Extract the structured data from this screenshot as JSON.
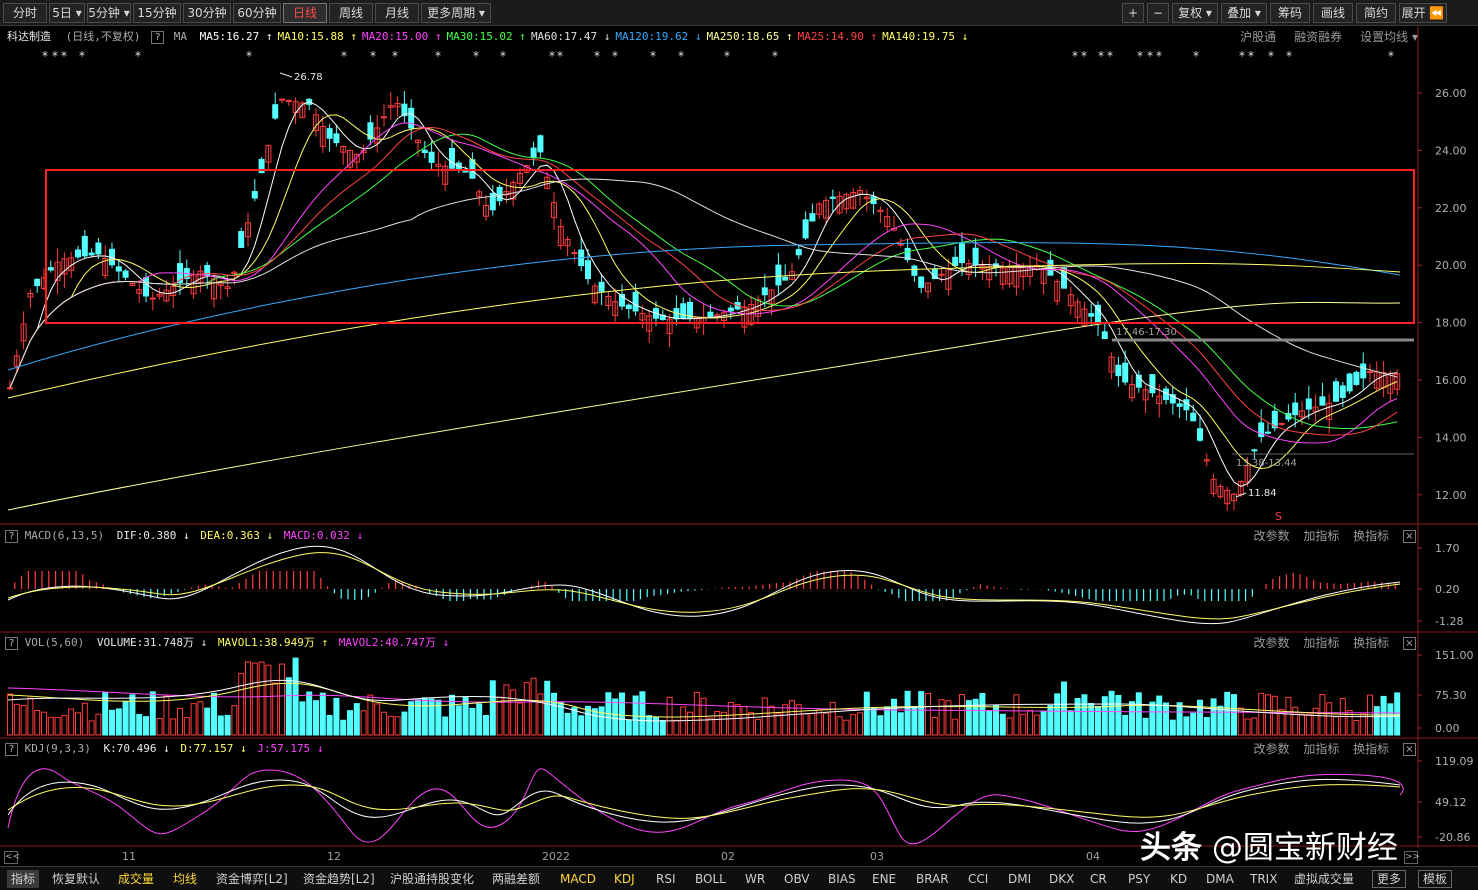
{
  "toolbar": {
    "periods": [
      "分时",
      "5日",
      "5分钟",
      "15分钟",
      "30分钟",
      "60分钟",
      "日线",
      "周线",
      "月线",
      "更多周期"
    ],
    "active_period": "日线",
    "right_buttons": [
      "+",
      "−",
      "复权",
      "叠加",
      "筹码",
      "画线",
      "简约",
      "展开"
    ]
  },
  "stock": {
    "name": "科达制造",
    "mode": "(日线,不复权)",
    "ma_label": "MA",
    "ma_items": [
      {
        "label": "MA5:16.27",
        "arrow": "↑",
        "color": "#ffffff"
      },
      {
        "label": "MA10:15.88",
        "arrow": "↑",
        "color": "#ffff66"
      },
      {
        "label": "MA20:15.00",
        "arrow": "↑",
        "color": "#ff44ff"
      },
      {
        "label": "MA30:15.02",
        "arrow": "↑",
        "color": "#44ff44"
      },
      {
        "label": "MA60:17.47",
        "arrow": "↓",
        "color": "#e0e0e0"
      },
      {
        "label": "MA120:19.62",
        "arrow": "↓",
        "color": "#33aaff"
      },
      {
        "label": "MA250:18.65",
        "arrow": "↑",
        "color": "#ffff99"
      },
      {
        "label": "MA25:14.90",
        "arrow": "↑",
        "color": "#ff4444"
      },
      {
        "label": "MA140:19.75",
        "arrow": "↓",
        "color": "#ffff66"
      }
    ],
    "right_links": [
      "沪股通",
      "融资融券",
      "设置均线"
    ]
  },
  "main_chart": {
    "yaxis": [
      "26.00",
      "24.00",
      "22.00",
      "20.00",
      "18.00",
      "16.00",
      "14.00",
      "12.00"
    ],
    "annotations": {
      "high": "26.78",
      "low": "11.84",
      "gap1": "17.46-17.30",
      "gap2": "13.38-13.44",
      "signal": "S"
    }
  },
  "macd": {
    "title": "MACD(6,13,5)",
    "dif": "DIF:0.380",
    "dif_arrow": "↓",
    "dea": "DEA:0.363",
    "dea_arrow": "↓",
    "macd": "MACD:0.032",
    "macd_arrow": "↓",
    "yaxis": [
      "1.70",
      "0.20",
      "-1.28"
    ]
  },
  "vol": {
    "title": "VOL(5,60)",
    "volume": "VOLUME:31.748万",
    "volume_arrow": "↓",
    "mavol1": "MAVOL1:38.949万",
    "mavol1_arrow": "↑",
    "mavol2": "MAVOL2:40.747万",
    "mavol2_arrow": "↓",
    "yaxis": [
      "151.00",
      "75.30",
      "0.00"
    ]
  },
  "kdj": {
    "title": "KDJ(9,3,3)",
    "k": "K:70.496",
    "k_arrow": "↓",
    "d": "D:77.157",
    "d_arrow": "↓",
    "j": "J:57.175",
    "j_arrow": "↓",
    "yaxis": [
      "119.09",
      "49.12",
      "-20.86"
    ]
  },
  "panel_tools": [
    "改参数",
    "加指标",
    "换指标"
  ],
  "xaxis": [
    "11",
    "12",
    "2022",
    "02",
    "03",
    "04"
  ],
  "tabs": [
    "指标",
    "恢复默认",
    "成交量",
    "均线",
    "资金博弈[L2]",
    "资金趋势[L2]",
    "沪股通持股变化",
    "两融差额",
    "MACD",
    "KDJ",
    "RSI",
    "BOLL",
    "WR",
    "OBV",
    "BIAS",
    "ENE",
    "BRAR",
    "CCI",
    "DMI",
    "DKX",
    "CR",
    "PSY",
    "KD",
    "DMA",
    "TRIX",
    "虚拟成交量",
    "更多",
    "模板"
  ],
  "highlight_tabs": [
    "成交量",
    "均线",
    "MACD",
    "KDJ"
  ],
  "watermark": {
    "brand": "头条",
    "text": "@圆宝新财经"
  },
  "colors": {
    "up": "#ff3c3c",
    "down": "#54ffff",
    "box": "#ff2020",
    "axis": "#8a1a1a"
  }
}
